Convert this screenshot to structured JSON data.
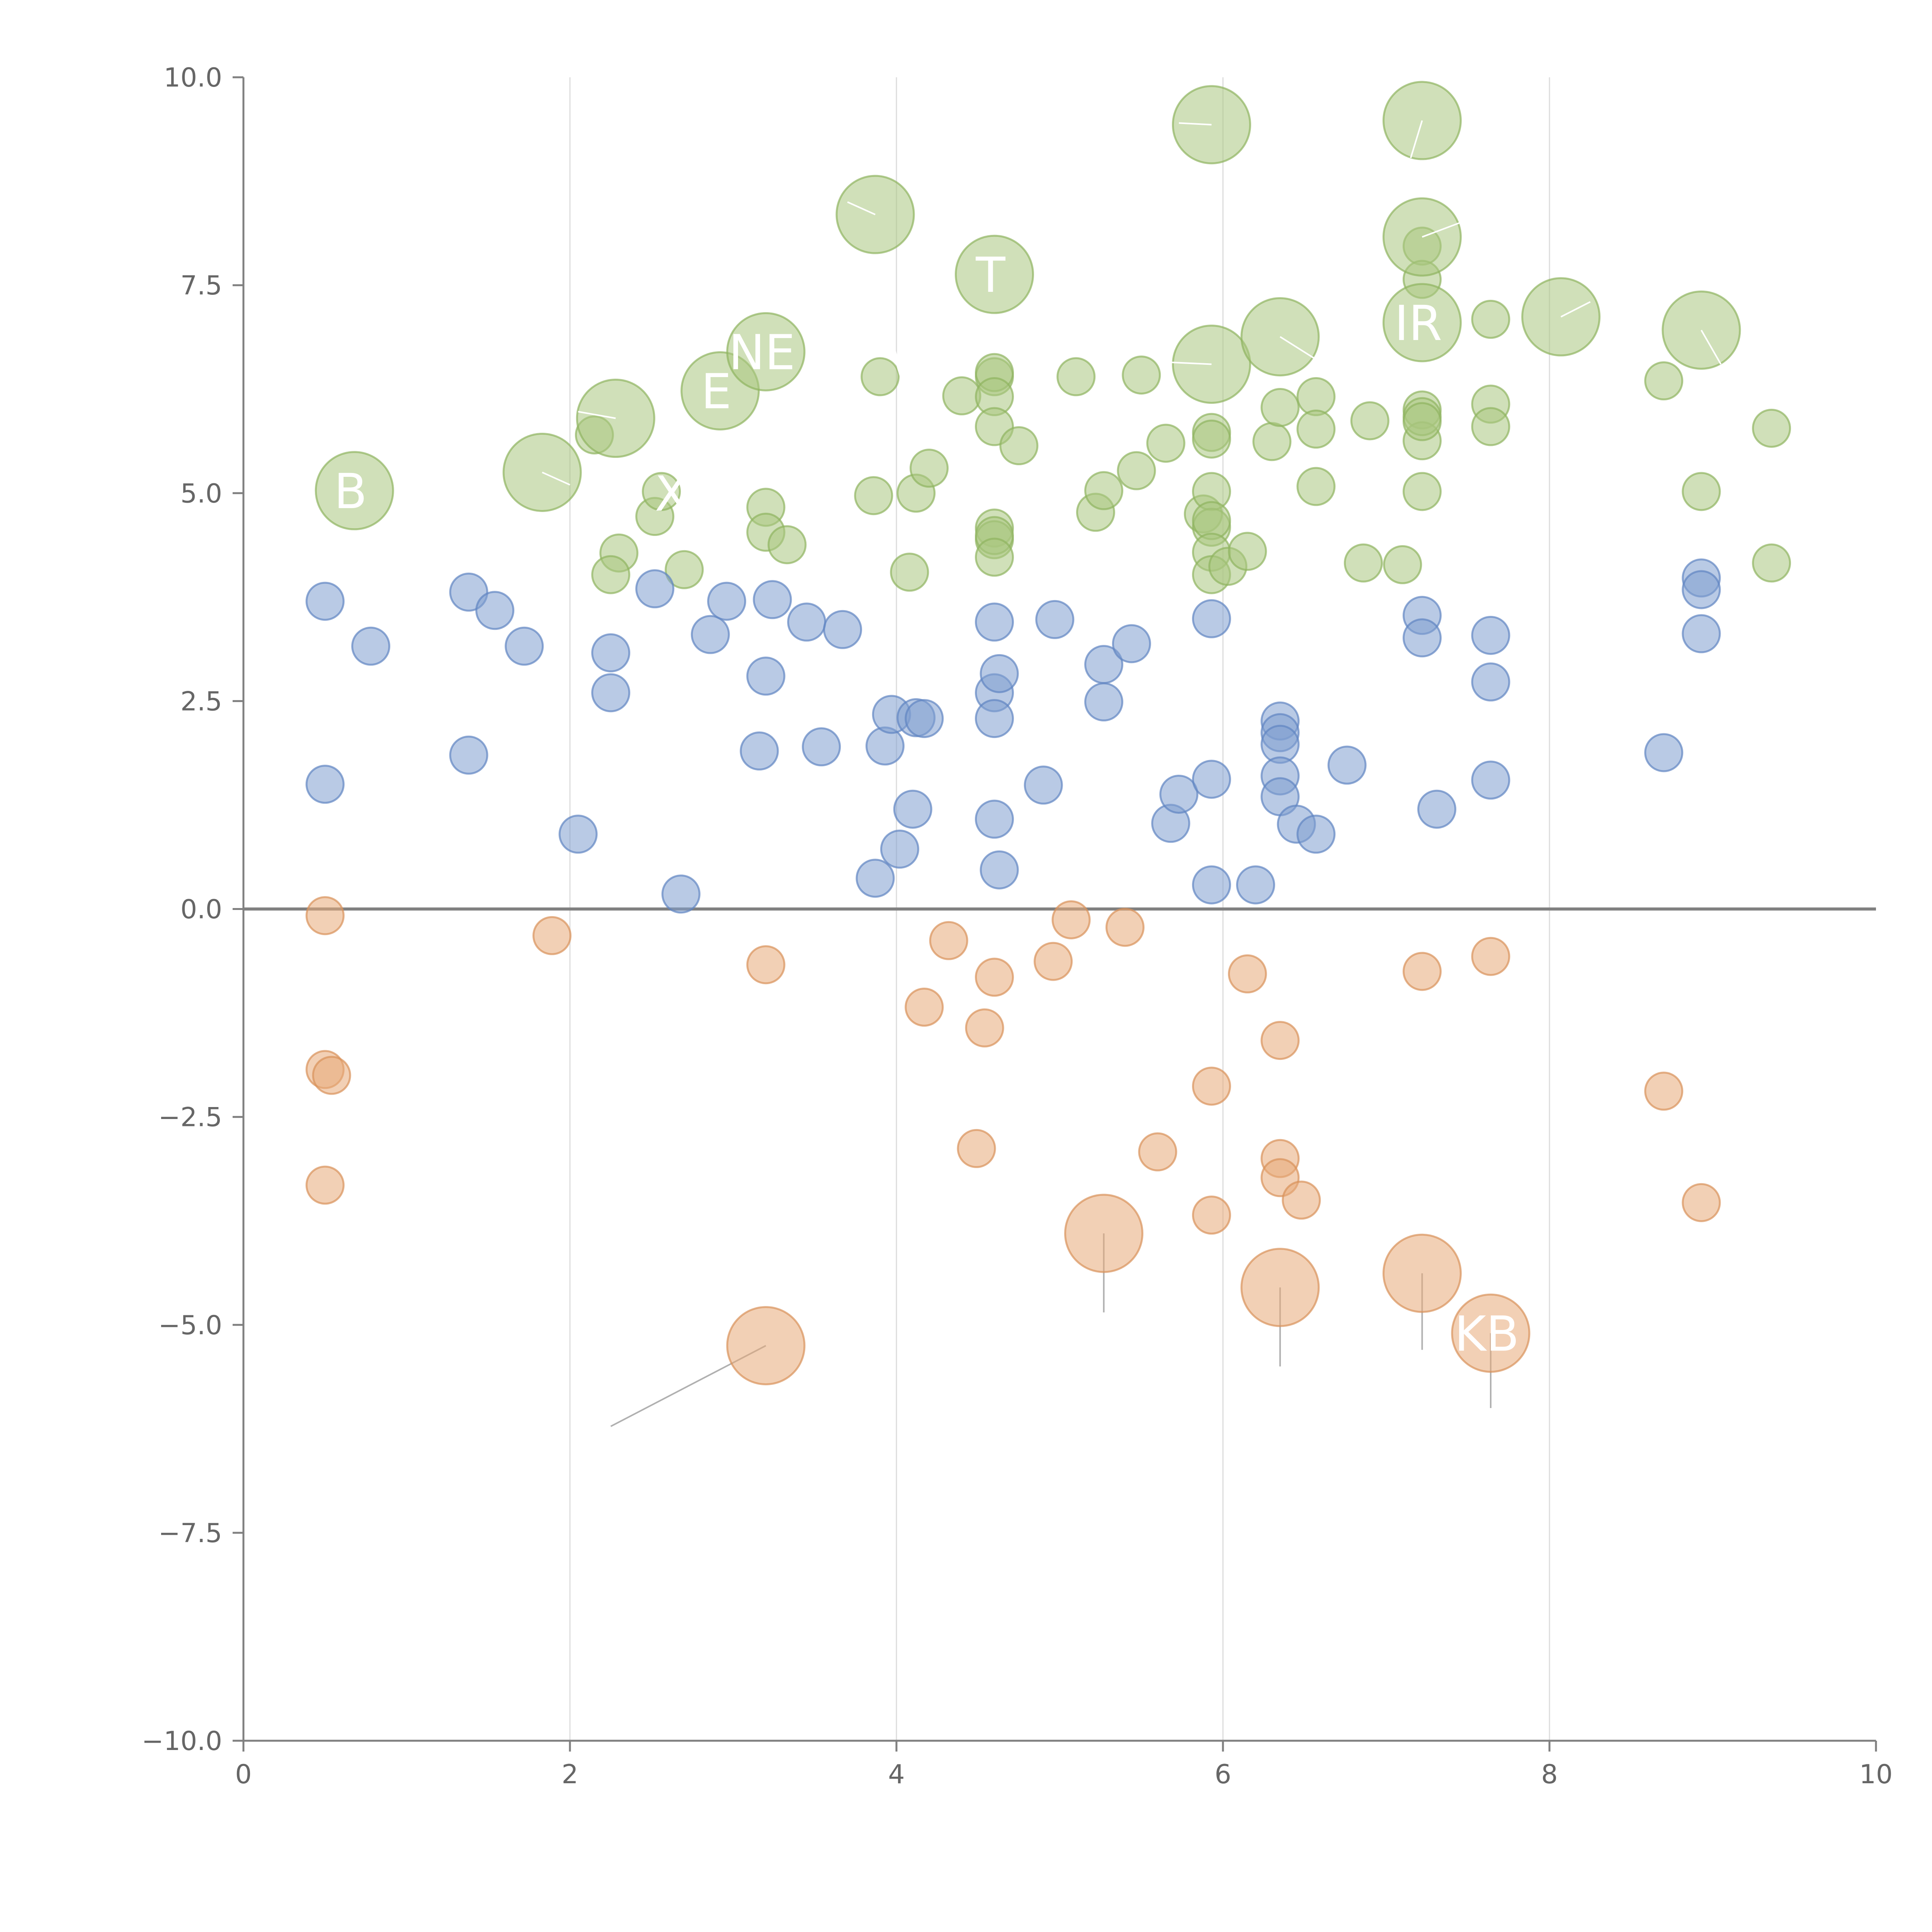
{
  "colors": {
    "positive": "#a9c77f",
    "positive_stroke": "#8fb35f",
    "middle": "#7f9fd0",
    "middle_stroke": "#5f84c2",
    "negative": "#e8aa78",
    "negative_stroke": "#d9915a",
    "axis": "#808080",
    "grid": "#dcdcdc",
    "text": "#666666",
    "label": "#ffffff",
    "leader_on_bubble": "#ffffff",
    "leader_off_bubble": "#b0b0b0"
  },
  "chart_data": {
    "type": "scatter",
    "variant": "bubble",
    "title": "",
    "xlabel": "",
    "ylabel": "",
    "xlim": [
      0,
      10
    ],
    "ylim": [
      -10,
      10
    ],
    "x_ticks": [
      "0",
      "2",
      "4",
      "6",
      "8",
      "10"
    ],
    "y_ticks": [
      "−10.0",
      "−7.5",
      "−5.0",
      "−2.5",
      "0.0",
      "2.5",
      "5.0",
      "7.5",
      "10.0"
    ],
    "x_tick_values": [
      0,
      2,
      4,
      6,
      8,
      10
    ],
    "y_tick_values": [
      -10,
      -7.5,
      -5,
      -2.5,
      0,
      2.5,
      5,
      7.5,
      10
    ],
    "vertical_grid": [
      2,
      4,
      6,
      8
    ],
    "horizontal_reference": 0,
    "size_scale_note": "small points have size 1, labeled highlights have size 2",
    "series": [
      {
        "name": "upper",
        "color_key": "positive",
        "points": [
          [
            2.15,
            5.7
          ],
          [
            2.3,
            4.28
          ],
          [
            2.25,
            4.02
          ],
          [
            2.52,
            4.72
          ],
          [
            2.56,
            5.02
          ],
          [
            2.7,
            4.08
          ],
          [
            3.2,
            4.83
          ],
          [
            3.2,
            4.53
          ],
          [
            3.33,
            4.38
          ],
          [
            3.86,
            4.97
          ],
          [
            3.9,
            6.4
          ],
          [
            4.08,
            4.05
          ],
          [
            4.12,
            5.0
          ],
          [
            4.2,
            5.3
          ],
          [
            4.4,
            6.17
          ],
          [
            4.6,
            6.4
          ],
          [
            4.6,
            6.45
          ],
          [
            4.6,
            6.16
          ],
          [
            4.6,
            5.8
          ],
          [
            4.6,
            4.58
          ],
          [
            4.6,
            4.44
          ],
          [
            4.6,
            4.49
          ],
          [
            4.6,
            4.23
          ],
          [
            4.75,
            5.57
          ],
          [
            5.1,
            6.4
          ],
          [
            5.22,
            4.77
          ],
          [
            5.27,
            5.03
          ],
          [
            5.47,
            5.27
          ],
          [
            5.5,
            6.42
          ],
          [
            5.65,
            5.6
          ],
          [
            5.88,
            4.75
          ],
          [
            5.93,
            5.73
          ],
          [
            5.93,
            5.65
          ],
          [
            5.93,
            5.02
          ],
          [
            5.93,
            4.59
          ],
          [
            5.93,
            4.67
          ],
          [
            5.93,
            4.29
          ],
          [
            5.93,
            4.02
          ],
          [
            6.03,
            4.12
          ],
          [
            6.15,
            4.3
          ],
          [
            6.3,
            5.62
          ],
          [
            6.35,
            6.03
          ],
          [
            6.57,
            6.16
          ],
          [
            6.57,
            5.77
          ],
          [
            6.57,
            5.08
          ],
          [
            6.9,
            5.87
          ],
          [
            6.86,
            4.16
          ],
          [
            7.1,
            4.14
          ],
          [
            7.22,
            6.0
          ],
          [
            7.22,
            5.63
          ],
          [
            7.22,
            5.92
          ],
          [
            7.22,
            5.86
          ],
          [
            7.22,
            7.97
          ],
          [
            7.22,
            7.57
          ],
          [
            7.22,
            5.02
          ],
          [
            7.64,
            7.09
          ],
          [
            7.64,
            6.07
          ],
          [
            7.64,
            5.8
          ],
          [
            8.7,
            6.35
          ],
          [
            8.93,
            5.02
          ],
          [
            9.36,
            5.78
          ],
          [
            9.36,
            4.16
          ]
        ],
        "highlights": [
          {
            "x": 0.68,
            "y": 5.03,
            "label": "B"
          },
          {
            "x": 1.83,
            "y": 5.25,
            "label": ""
          },
          {
            "x": 2.28,
            "y": 5.9,
            "label": ""
          },
          {
            "x": 2.92,
            "y": 6.23,
            "label": "E"
          },
          {
            "x": 3.2,
            "y": 6.7,
            "label": "NE"
          },
          {
            "x": 3.87,
            "y": 8.35,
            "label": ""
          },
          {
            "x": 4.6,
            "y": 7.63,
            "label": "T"
          },
          {
            "x": 5.93,
            "y": 9.43,
            "label": ""
          },
          {
            "x": 5.93,
            "y": 6.55,
            "label": ""
          },
          {
            "x": 6.35,
            "y": 6.88,
            "label": ""
          },
          {
            "x": 7.22,
            "y": 9.48,
            "label": ""
          },
          {
            "x": 7.22,
            "y": 8.08,
            "label": ""
          },
          {
            "x": 7.22,
            "y": 7.05,
            "label": "IR"
          },
          {
            "x": 8.07,
            "y": 7.12,
            "label": ""
          },
          {
            "x": 8.93,
            "y": 6.96,
            "label": ""
          }
        ],
        "text_fragments": [
          {
            "x": 2.55,
            "y": 5.0,
            "text": "X"
          },
          {
            "x": 3.95,
            "y": 6.5,
            "text": "\\"
          }
        ]
      },
      {
        "name": "middle",
        "color_key": "middle",
        "points": [
          [
            0.5,
            3.7
          ],
          [
            0.5,
            1.5
          ],
          [
            0.78,
            3.16
          ],
          [
            1.38,
            3.81
          ],
          [
            1.38,
            1.85
          ],
          [
            1.54,
            3.59
          ],
          [
            1.72,
            3.16
          ],
          [
            2.05,
            0.9
          ],
          [
            2.25,
            3.08
          ],
          [
            2.25,
            2.6
          ],
          [
            2.52,
            3.85
          ],
          [
            2.68,
            0.18
          ],
          [
            2.86,
            3.3
          ],
          [
            2.96,
            3.7
          ],
          [
            3.16,
            1.9
          ],
          [
            3.2,
            2.8
          ],
          [
            3.24,
            3.72
          ],
          [
            3.45,
            3.45
          ],
          [
            3.54,
            1.95
          ],
          [
            3.67,
            3.36
          ],
          [
            3.87,
            0.37
          ],
          [
            3.93,
            1.96
          ],
          [
            3.97,
            2.34
          ],
          [
            4.02,
            0.72
          ],
          [
            4.1,
            1.2
          ],
          [
            4.12,
            2.3
          ],
          [
            4.17,
            2.29
          ],
          [
            4.6,
            3.45
          ],
          [
            4.6,
            2.6
          ],
          [
            4.6,
            2.29
          ],
          [
            4.6,
            1.08
          ],
          [
            4.63,
            2.83
          ],
          [
            4.63,
            0.47
          ],
          [
            4.9,
            1.49
          ],
          [
            4.97,
            3.48
          ],
          [
            5.27,
            2.94
          ],
          [
            5.27,
            2.49
          ],
          [
            5.44,
            3.19
          ],
          [
            5.68,
            1.03
          ],
          [
            5.73,
            1.38
          ],
          [
            5.93,
            3.49
          ],
          [
            5.93,
            1.56
          ],
          [
            5.93,
            0.29
          ],
          [
            6.2,
            0.29
          ],
          [
            6.35,
            2.26
          ],
          [
            6.35,
            2.12
          ],
          [
            6.35,
            1.98
          ],
          [
            6.35,
            1.6
          ],
          [
            6.35,
            1.35
          ],
          [
            6.45,
            1.02
          ],
          [
            6.57,
            0.9
          ],
          [
            6.76,
            1.73
          ],
          [
            7.22,
            3.53
          ],
          [
            7.22,
            3.26
          ],
          [
            7.31,
            1.2
          ],
          [
            7.64,
            3.29
          ],
          [
            7.64,
            2.73
          ],
          [
            7.64,
            1.55
          ],
          [
            8.7,
            1.88
          ],
          [
            8.93,
            3.98
          ],
          [
            8.93,
            3.84
          ],
          [
            8.93,
            3.31
          ]
        ],
        "highlights": [],
        "text_fragments": []
      },
      {
        "name": "lower",
        "color_key": "negative",
        "points": [
          [
            0.5,
            -0.08
          ],
          [
            0.5,
            -1.93
          ],
          [
            0.54,
            -2.0
          ],
          [
            0.5,
            -3.32
          ],
          [
            1.89,
            -0.32
          ],
          [
            3.2,
            -0.67
          ],
          [
            4.17,
            -1.18
          ],
          [
            4.32,
            -0.38
          ],
          [
            4.49,
            -2.88
          ],
          [
            4.54,
            -1.43
          ],
          [
            4.6,
            -0.82
          ],
          [
            4.96,
            -0.63
          ],
          [
            5.07,
            -0.13
          ],
          [
            5.4,
            -0.22
          ],
          [
            5.6,
            -2.92
          ],
          [
            5.93,
            -2.13
          ],
          [
            5.93,
            -3.68
          ],
          [
            6.15,
            -0.78
          ],
          [
            6.35,
            -1.58
          ],
          [
            6.35,
            -3.0
          ],
          [
            6.35,
            -3.23
          ],
          [
            6.48,
            -3.5
          ],
          [
            7.22,
            -0.75
          ],
          [
            7.64,
            -0.57
          ],
          [
            8.7,
            -2.19
          ],
          [
            8.93,
            -3.53
          ]
        ],
        "highlights": [
          {
            "x": 3.2,
            "y": -5.25,
            "label": ""
          },
          {
            "x": 5.27,
            "y": -3.9,
            "label": ""
          },
          {
            "x": 6.35,
            "y": -4.55,
            "label": ""
          },
          {
            "x": 7.22,
            "y": -4.38,
            "label": ""
          },
          {
            "x": 7.64,
            "y": -5.1,
            "label": "KB"
          }
        ],
        "text_fragments": []
      }
    ],
    "leaders": [
      {
        "from": [
          3.2,
          -5.25
        ],
        "to": [
          2.25,
          -6.22
        ],
        "style": "off"
      },
      {
        "from": [
          5.27,
          -3.9
        ],
        "to": [
          5.27,
          -4.85
        ],
        "style": "off"
      },
      {
        "from": [
          6.35,
          -4.55
        ],
        "to": [
          6.35,
          -5.5
        ],
        "style": "off"
      },
      {
        "from": [
          7.22,
          -4.38
        ],
        "to": [
          7.22,
          -5.3
        ],
        "style": "off"
      },
      {
        "from": [
          7.64,
          -5.1
        ],
        "to": [
          7.64,
          -6.0
        ],
        "style": "off"
      },
      {
        "from": [
          1.83,
          5.25
        ],
        "to": [
          2.0,
          5.1
        ],
        "style": "on"
      },
      {
        "from": [
          2.28,
          5.9
        ],
        "to": [
          2.05,
          5.98
        ],
        "style": "on"
      },
      {
        "from": [
          3.87,
          8.35
        ],
        "to": [
          3.7,
          8.5
        ],
        "style": "on"
      },
      {
        "from": [
          5.93,
          9.43
        ],
        "to": [
          5.73,
          9.45
        ],
        "style": "on"
      },
      {
        "from": [
          5.93,
          6.55
        ],
        "to": [
          5.6,
          6.58
        ],
        "style": "on"
      },
      {
        "from": [
          6.35,
          6.88
        ],
        "to": [
          6.9,
          6.2
        ],
        "style": "on"
      },
      {
        "from": [
          7.22,
          9.48
        ],
        "to": [
          7.15,
          9.03
        ],
        "style": "on"
      },
      {
        "from": [
          7.22,
          8.08
        ],
        "to": [
          7.45,
          8.25
        ],
        "style": "on"
      },
      {
        "from": [
          8.07,
          7.12
        ],
        "to": [
          8.25,
          7.3
        ],
        "style": "on"
      },
      {
        "from": [
          8.93,
          6.96
        ],
        "to": [
          9.05,
          6.55
        ],
        "style": "on"
      }
    ]
  }
}
